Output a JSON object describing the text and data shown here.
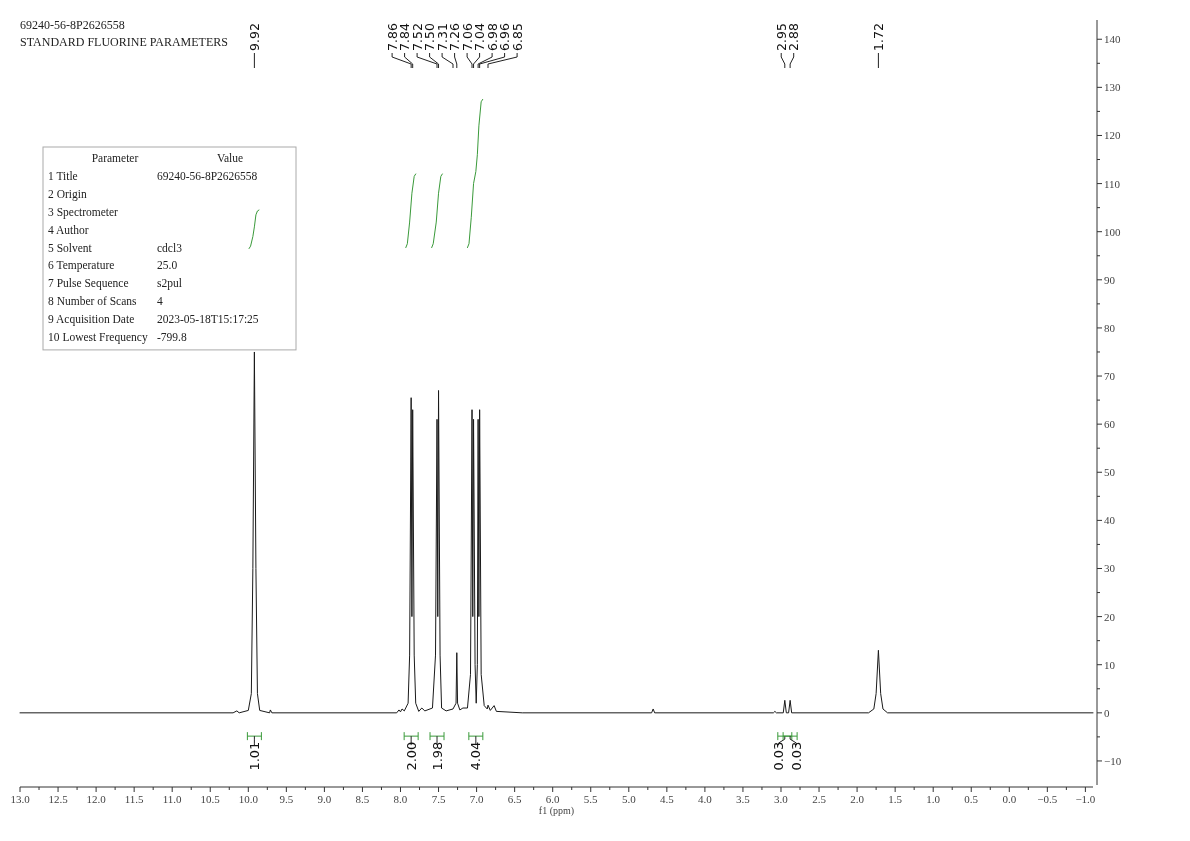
{
  "chart_data": {
    "type": "line",
    "title": "69240-56-8P2626558",
    "subtitle": "STANDARD FLUORINE PARAMETERS",
    "xlabel": "f1 (ppm)",
    "xlim": [
      13.0,
      -1.1
    ],
    "ylim": [
      -15,
      144
    ],
    "xticks": [
      {
        "value": 13,
        "label": "13.0"
      },
      {
        "value": 12.75,
        "label": null
      },
      12.5,
      {
        "value": 12.25,
        "label": null
      },
      {
        "value": 12,
        "label": "12.0"
      },
      {
        "value": 11.75,
        "label": null
      },
      11.5,
      {
        "value": 11.25,
        "label": null
      },
      {
        "value": 11,
        "label": "11.0"
      },
      {
        "value": 10.75,
        "label": null
      },
      10.5,
      {
        "value": 10.25,
        "label": null
      },
      {
        "value": 10,
        "label": "10.0"
      },
      {
        "value": 9.75,
        "label": null
      },
      9.5,
      {
        "value": 9.25,
        "label": null
      },
      {
        "value": 9,
        "label": "9.0"
      },
      {
        "value": 8.75,
        "label": null
      },
      8.5,
      {
        "value": 8.25,
        "label": null
      },
      {
        "value": 8,
        "label": "8.0"
      },
      {
        "value": 7.75,
        "label": null
      },
      7.5,
      {
        "value": 7.25,
        "label": null
      },
      {
        "value": 7,
        "label": "7.0"
      },
      {
        "value": 6.75,
        "label": null
      },
      6.5,
      {
        "value": 6.25,
        "label": null
      },
      {
        "value": 6,
        "label": "6.0"
      },
      {
        "value": 5.75,
        "label": null
      },
      5.5,
      {
        "value": 5.25,
        "label": null
      },
      {
        "value": 5,
        "label": "5.0"
      },
      {
        "value": 4.75,
        "label": null
      },
      4.5,
      {
        "value": 4.25,
        "label": null
      },
      {
        "value": 4,
        "label": "4.0"
      },
      {
        "value": 3.75,
        "label": null
      },
      3.5,
      {
        "value": 3.25,
        "label": null
      },
      {
        "value": 3,
        "label": "3.0"
      },
      {
        "value": 2.75,
        "label": null
      },
      2.5,
      {
        "value": 2.25,
        "label": null
      },
      {
        "value": 2,
        "label": "2.0"
      },
      {
        "value": 1.75,
        "label": null
      },
      1.5,
      {
        "value": 1.25,
        "label": null
      },
      {
        "value": 1,
        "label": "1.0"
      },
      {
        "value": 0.75,
        "label": null
      },
      0.5,
      {
        "value": 0.25,
        "label": null
      },
      {
        "value": 0,
        "label": "0.0"
      },
      {
        "value": -0.25,
        "label": null
      },
      {
        "value": -0.5,
        "label": "−0.5"
      },
      {
        "value": -0.75,
        "label": null
      },
      {
        "value": -1,
        "label": "−1.0"
      }
    ],
    "yticks": [
      {
        "value": -10,
        "label": "−10"
      },
      {
        "value": -5,
        "label": null
      },
      0,
      {
        "value": 5,
        "label": null
      },
      10,
      {
        "value": 15,
        "label": null
      },
      20,
      {
        "value": 25,
        "label": null
      },
      30,
      {
        "value": 35,
        "label": null
      },
      40,
      {
        "value": 45,
        "label": null
      },
      50,
      {
        "value": 55,
        "label": null
      },
      60,
      {
        "value": 65,
        "label": null
      },
      70,
      {
        "value": 75,
        "label": null
      },
      80,
      {
        "value": 85,
        "label": null
      },
      90,
      {
        "value": 95,
        "label": null
      },
      100,
      {
        "value": 105,
        "label": null
      },
      110,
      {
        "value": 115,
        "label": null
      },
      120,
      {
        "value": 125,
        "label": null
      },
      130,
      {
        "value": 135,
        "label": null
      },
      140
    ],
    "series": [
      {
        "color": "#1a1a1a",
        "x": [
          13.0,
          10.2,
          10.15,
          10.12,
          10.0,
          9.96,
          9.94,
          9.92,
          9.9,
          9.88,
          9.85,
          9.72,
          9.71,
          9.69,
          8.05,
          8.02,
          8.0,
          7.98,
          7.95,
          7.9,
          7.88,
          7.86,
          7.85,
          7.84,
          7.82,
          7.8,
          7.76,
          7.72,
          7.68,
          7.58,
          7.54,
          7.52,
          7.51,
          7.5,
          7.48,
          7.46,
          7.4,
          7.31,
          7.27,
          7.26,
          7.25,
          7.22,
          7.18,
          7.12,
          7.08,
          7.06,
          7.05,
          7.04,
          7.02,
          7.005,
          6.99,
          6.98,
          6.97,
          6.96,
          6.94,
          6.9,
          6.86,
          6.85,
          6.82,
          6.77,
          6.74,
          6.4,
          4.7,
          4.68,
          4.66,
          3.1,
          3.08,
          3.06,
          2.97,
          2.95,
          2.93,
          2.9,
          2.88,
          2.86,
          1.85,
          1.78,
          1.75,
          1.72,
          1.69,
          1.66,
          1.6,
          -1.1
        ],
        "values": [
          0,
          0,
          0.4,
          0,
          0.5,
          4,
          30,
          75,
          30,
          4,
          0.5,
          0,
          0.6,
          0,
          0,
          0.6,
          0.2,
          0.8,
          0.4,
          2,
          12,
          65.5,
          20,
          63,
          12,
          2,
          0.3,
          1,
          0.4,
          1,
          12,
          61,
          20,
          67,
          12,
          1,
          0.4,
          0.8,
          2,
          12.5,
          2,
          0.6,
          1,
          1,
          8,
          63,
          20,
          61,
          10,
          2,
          10,
          61,
          20,
          63,
          8,
          1.5,
          0.8,
          1.6,
          0.5,
          1.5,
          0.3,
          0,
          0,
          0.8,
          0,
          0,
          0.3,
          0,
          0,
          2.6,
          0,
          0,
          2.6,
          0,
          0,
          0.8,
          4,
          13,
          4,
          0.8,
          0,
          0
        ]
      },
      {
        "color": "#3a9a3a",
        "x": [
          9.99,
          9.97,
          9.94,
          9.92,
          9.9,
          9.88,
          9.86
        ],
        "values": [
          96.5,
          97,
          99,
          101,
          103.5,
          104.3,
          104.5
        ]
      },
      {
        "color": "#3a9a3a",
        "x": [
          7.93,
          7.91,
          7.88,
          7.85,
          7.82,
          7.8
        ],
        "values": [
          96.7,
          97.5,
          102,
          108,
          111.5,
          112
        ]
      },
      {
        "color": "#3a9a3a",
        "x": [
          7.59,
          7.57,
          7.53,
          7.5,
          7.47,
          7.45
        ],
        "values": [
          96.7,
          97.5,
          102,
          108,
          111.5,
          112
        ]
      },
      {
        "color": "#3a9a3a",
        "x": [
          7.12,
          7.1,
          7.07,
          7.04,
          7.01,
          6.99,
          6.97,
          6.94,
          6.92
        ],
        "values": [
          96.7,
          97.5,
          103,
          110,
          112.5,
          116,
          122,
          127,
          127.5
        ]
      }
    ],
    "annotations": [
      "Parameter  Value",
      "1 Title  69240-56-8P2626558",
      "2 Origin",
      "3 Spectrometer",
      "4 Author",
      "5 Solvent  cdcl3",
      "6 Temperature  25.0",
      "7 Pulse Sequence  s2pul",
      "8 Number of Scans  4",
      "9 Acquisition Date  2023-05-18T15:17:25",
      "10 Lowest Frequency  -799.8",
      {
        "text": "9.92",
        "x": 9.92
      },
      {
        "text": "7.86",
        "x": 7.86
      },
      {
        "text": "7.84",
        "x": 7.84
      },
      {
        "text": "7.52",
        "x": 7.52
      },
      {
        "text": "7.50",
        "x": 7.5
      },
      {
        "text": "7.31",
        "x": 7.31
      },
      {
        "text": "7.26",
        "x": 7.26
      },
      {
        "text": "7.06",
        "x": 7.06
      },
      {
        "text": "7.04",
        "x": 7.04
      },
      {
        "text": "6.98",
        "x": 6.98
      },
      {
        "text": "6.96",
        "x": 6.96
      },
      {
        "text": "6.85",
        "x": 6.85
      },
      {
        "text": "2.95",
        "x": 2.95
      },
      {
        "text": "2.88",
        "x": 2.88
      },
      {
        "text": "1.72",
        "x": 1.72
      },
      {
        "text": "1.01",
        "x": 9.92
      },
      {
        "text": "2.00",
        "x": 7.86
      },
      {
        "text": "1.98",
        "x": 7.52
      },
      {
        "text": "4.04",
        "x": 7.01
      },
      {
        "text": "0.03",
        "x": 2.95
      },
      {
        "text": "0.03",
        "x": 2.88
      }
    ]
  }
}
